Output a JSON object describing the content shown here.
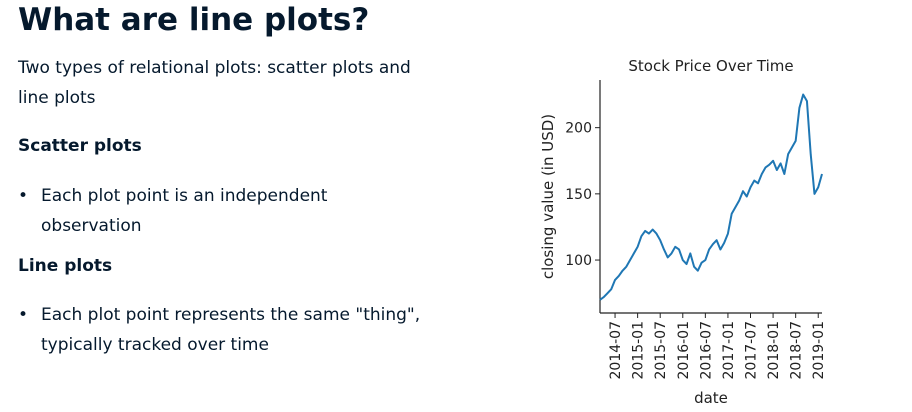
{
  "header": {
    "title": "What are line plots?"
  },
  "intro": "Two types of relational plots: scatter plots and line plots",
  "sections": [
    {
      "heading": "Scatter plots",
      "bullets": [
        "Each plot point is an independent observation"
      ]
    },
    {
      "heading": "Line plots",
      "bullets": [
        "Each plot point represents the same \"thing\", typically tracked over time"
      ]
    }
  ],
  "chart_data": {
    "type": "line",
    "title": "Stock Price Over Time",
    "x_label": "date",
    "y_label": "closing value (in USD)",
    "x": [
      "2014-03",
      "2014-04",
      "2014-05",
      "2014-06",
      "2014-07",
      "2014-08",
      "2014-09",
      "2014-10",
      "2014-11",
      "2014-12",
      "2015-01",
      "2015-02",
      "2015-03",
      "2015-04",
      "2015-05",
      "2015-06",
      "2015-07",
      "2015-08",
      "2015-09",
      "2015-10",
      "2015-11",
      "2015-12",
      "2016-01",
      "2016-02",
      "2016-03",
      "2016-04",
      "2016-05",
      "2016-06",
      "2016-07",
      "2016-08",
      "2016-09",
      "2016-10",
      "2016-11",
      "2016-12",
      "2017-01",
      "2017-02",
      "2017-03",
      "2017-04",
      "2017-05",
      "2017-06",
      "2017-07",
      "2017-08",
      "2017-09",
      "2017-10",
      "2017-11",
      "2017-12",
      "2018-01",
      "2018-02",
      "2018-03",
      "2018-04",
      "2018-05",
      "2018-06",
      "2018-07",
      "2018-08",
      "2018-09",
      "2018-10",
      "2018-11",
      "2018-12",
      "2019-01",
      "2019-02"
    ],
    "series": [
      {
        "name": "closing value",
        "color": "#1f77b4",
        "values": [
          70,
          72,
          75,
          78,
          85,
          88,
          92,
          95,
          100,
          105,
          110,
          118,
          122,
          120,
          123,
          120,
          115,
          108,
          102,
          105,
          110,
          108,
          100,
          97,
          105,
          95,
          92,
          98,
          100,
          108,
          112,
          115,
          108,
          113,
          120,
          135,
          140,
          145,
          152,
          148,
          155,
          160,
          158,
          165,
          170,
          172,
          175,
          168,
          173,
          165,
          180,
          185,
          190,
          215,
          225,
          220,
          180,
          150,
          155,
          165
        ]
      }
    ],
    "xlim": [
      "2014-03",
      "2019-02"
    ],
    "xticks": [
      "2014-07",
      "2015-01",
      "2015-07",
      "2016-01",
      "2016-07",
      "2017-01",
      "2017-07",
      "2018-01",
      "2018-07",
      "2019-01"
    ],
    "ylim": [
      60,
      236
    ],
    "yticks": [
      100,
      150,
      200
    ]
  }
}
